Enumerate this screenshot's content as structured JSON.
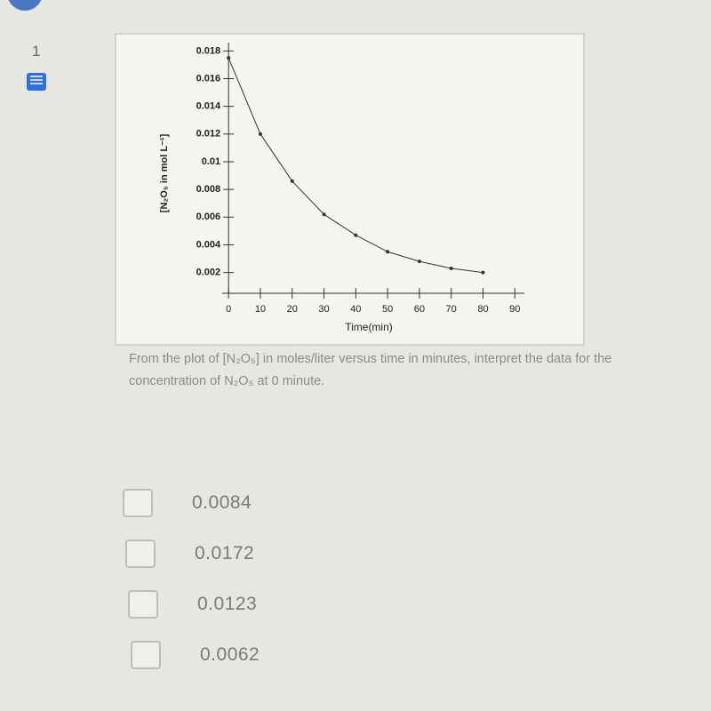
{
  "question_number": "1",
  "chart_data": {
    "type": "line",
    "x_label": "Time(min)",
    "y_label": "[N₂O₅ in mol L⁻¹]",
    "x": [
      0,
      10,
      20,
      30,
      40,
      50,
      60,
      70,
      80
    ],
    "series": [
      {
        "name": "[N₂O₅]",
        "color": "#333333",
        "values": [
          0.0175,
          0.012,
          0.0086,
          0.0062,
          0.0047,
          0.0035,
          0.0028,
          0.0023,
          0.002
        ]
      }
    ],
    "xlim": [
      -2,
      93
    ],
    "ylim": [
      0.0005,
      0.0186
    ],
    "xticks": [
      0,
      10,
      20,
      30,
      40,
      50,
      60,
      70,
      80,
      90
    ],
    "yticks": [
      0.002,
      0.004,
      0.006,
      0.008,
      0.01,
      0.012,
      0.014,
      0.016,
      0.018
    ]
  },
  "question_text": "From the plot of [N₂O₅] in moles/liter versus time in minutes, interpret the data for the concentration of N₂O₅ at 0 minute.",
  "options": [
    "0.0084",
    "0.0172",
    "0.0123",
    "0.0062"
  ]
}
